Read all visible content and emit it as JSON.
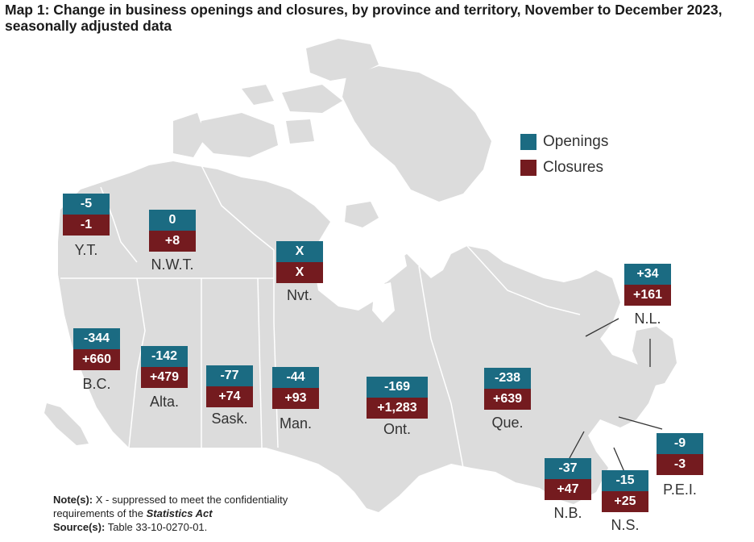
{
  "title": "Map 1: Change in business openings and closures, by province and territory, November to December 2023, seasonally adjusted data",
  "legend": {
    "openings": "Openings",
    "closures": "Closures",
    "openings_color": "#1b6b82",
    "closures_color": "#741b1f"
  },
  "regions": {
    "yt": {
      "label": "Y.T.",
      "openings": "-5",
      "closures": "-1"
    },
    "nwt": {
      "label": "N.W.T.",
      "openings": "0",
      "closures": "+8"
    },
    "nvt": {
      "label": "Nvt.",
      "openings": "X",
      "closures": "X"
    },
    "bc": {
      "label": "B.C.",
      "openings": "-344",
      "closures": "+660"
    },
    "ab": {
      "label": "Alta.",
      "openings": "-142",
      "closures": "+479"
    },
    "sk": {
      "label": "Sask.",
      "openings": "-77",
      "closures": "+74"
    },
    "mb": {
      "label": "Man.",
      "openings": "-44",
      "closures": "+93"
    },
    "on": {
      "label": "Ont.",
      "openings": "-169",
      "closures": "+1,283"
    },
    "qc": {
      "label": "Que.",
      "openings": "-238",
      "closures": "+639"
    },
    "nl": {
      "label": "N.L.",
      "openings": "+34",
      "closures": "+161"
    },
    "pe": {
      "label": "P.E.I.",
      "openings": "-9",
      "closures": "-3"
    },
    "nb": {
      "label": "N.B.",
      "openings": "-37",
      "closures": "+47"
    },
    "ns": {
      "label": "N.S.",
      "openings": "-15",
      "closures": "+25"
    }
  },
  "notes": {
    "note_label": "Note(s):",
    "note_text": "X - suppressed to meet the confidentiality",
    "note_text2": "requirements of the",
    "note_act": "Statistics Act",
    "source_label": "Source(s):",
    "source_text": "Table 33-10-0270-01."
  },
  "colors": {
    "land": "#dcdcdc",
    "border": "#ffffff"
  }
}
